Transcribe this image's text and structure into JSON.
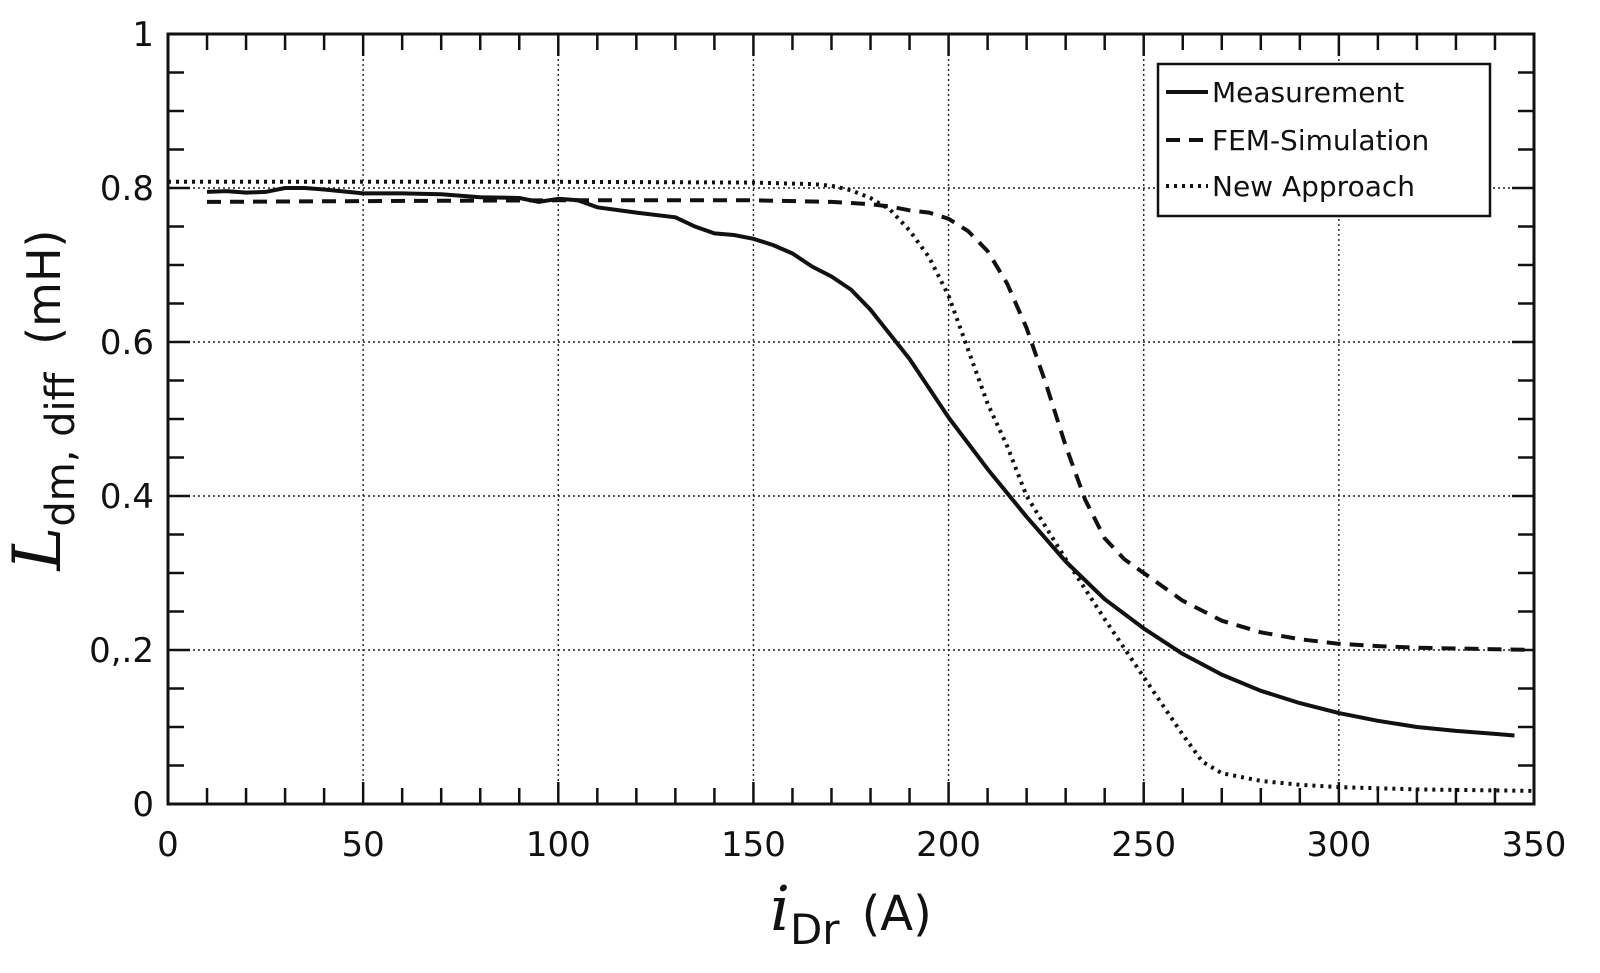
{
  "chart_data": {
    "type": "line",
    "xlabel": {
      "symbol": "i",
      "subscript": "Dr",
      "unit": "(A)"
    },
    "ylabel": {
      "symbol": "L",
      "subscript": "dm, diff",
      "unit": "(mH)"
    },
    "xlim": [
      0,
      350
    ],
    "ylim": [
      0,
      1
    ],
    "grid": true,
    "legend_position": "top-right",
    "x_ticks": [
      0,
      50,
      100,
      150,
      200,
      250,
      300,
      350
    ],
    "x_tick_labels": [
      "0",
      "50",
      "100",
      "150",
      "200",
      "250",
      "300",
      "350"
    ],
    "y_ticks": [
      0,
      0.2,
      0.4,
      0.6,
      0.8,
      1
    ],
    "y_tick_labels": [
      "0",
      "0,.2",
      "0.4",
      "0.6",
      "0.8",
      "1"
    ],
    "series": [
      {
        "name": "Measurement",
        "style": "solid",
        "x": [
          10,
          15,
          20,
          25,
          30,
          35,
          40,
          50,
          60,
          70,
          80,
          90,
          95,
          100,
          105,
          110,
          120,
          130,
          135,
          140,
          145,
          150,
          155,
          160,
          165,
          170,
          175,
          180,
          190,
          200,
          210,
          220,
          230,
          240,
          250,
          260,
          270,
          280,
          290,
          300,
          310,
          320,
          330,
          340,
          345
        ],
        "y": [
          0.795,
          0.796,
          0.794,
          0.795,
          0.8,
          0.8,
          0.798,
          0.793,
          0.793,
          0.792,
          0.788,
          0.787,
          0.782,
          0.786,
          0.784,
          0.775,
          0.768,
          0.762,
          0.75,
          0.741,
          0.739,
          0.734,
          0.726,
          0.715,
          0.698,
          0.685,
          0.668,
          0.642,
          0.578,
          0.502,
          0.435,
          0.373,
          0.315,
          0.266,
          0.228,
          0.195,
          0.168,
          0.147,
          0.131,
          0.118,
          0.108,
          0.1,
          0.095,
          0.091,
          0.089
        ]
      },
      {
        "name": "FEM-Simulation",
        "style": "dashed",
        "x": [
          10,
          50,
          100,
          150,
          170,
          180,
          185,
          190,
          195,
          200,
          205,
          210,
          215,
          220,
          225,
          230,
          235,
          240,
          245,
          250,
          260,
          270,
          280,
          290,
          300,
          310,
          320,
          330,
          340,
          350
        ],
        "y": [
          0.782,
          0.783,
          0.784,
          0.784,
          0.782,
          0.779,
          0.776,
          0.771,
          0.768,
          0.76,
          0.744,
          0.718,
          0.676,
          0.618,
          0.545,
          0.465,
          0.395,
          0.345,
          0.318,
          0.3,
          0.264,
          0.238,
          0.223,
          0.214,
          0.208,
          0.205,
          0.203,
          0.202,
          0.201,
          0.2
        ]
      },
      {
        "name": "New Approach",
        "style": "dotted",
        "x": [
          0,
          50,
          100,
          150,
          165,
          170,
          175,
          180,
          185,
          190,
          195,
          200,
          205,
          210,
          215,
          220,
          230,
          240,
          250,
          260,
          265,
          270,
          280,
          290,
          300,
          320,
          350
        ],
        "y": [
          0.808,
          0.808,
          0.808,
          0.807,
          0.805,
          0.803,
          0.797,
          0.787,
          0.772,
          0.745,
          0.71,
          0.66,
          0.59,
          0.52,
          0.465,
          0.4,
          0.318,
          0.24,
          0.165,
          0.09,
          0.055,
          0.04,
          0.03,
          0.025,
          0.022,
          0.019,
          0.017
        ]
      }
    ]
  }
}
